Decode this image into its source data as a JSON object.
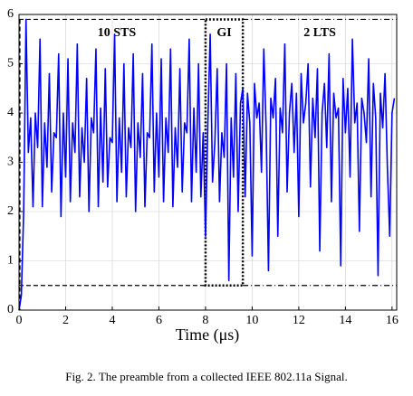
{
  "chart_data": {
    "type": "line",
    "x_label": "Time (μs)",
    "caption": "Fig. 2.  The preamble from a collected IEEE 802.11a Signal.",
    "xlim": [
      0,
      16.2
    ],
    "ylim": [
      0,
      6
    ],
    "xticks": [
      0,
      2,
      4,
      6,
      8,
      10,
      12,
      14,
      16
    ],
    "yticks": [
      0,
      1,
      2,
      3,
      4,
      5,
      6
    ],
    "grid": true,
    "regions": [
      {
        "label": "10 STS",
        "x": [
          0,
          8
        ]
      },
      {
        "label": "GI",
        "x": [
          8,
          9.6
        ]
      },
      {
        "label": "2 LTS",
        "x": [
          9.6,
          16.2
        ]
      }
    ],
    "levels": [
      0.5,
      5.9
    ],
    "x": [
      0,
      0.1,
      0.2,
      0.3,
      0.4,
      0.5,
      0.6,
      0.7,
      0.8,
      0.9,
      1,
      1.1,
      1.2,
      1.3,
      1.4,
      1.5,
      1.6,
      1.7,
      1.8,
      1.9,
      2,
      2.1,
      2.2,
      2.3,
      2.4,
      2.5,
      2.6,
      2.7,
      2.8,
      2.9,
      3,
      3.1,
      3.2,
      3.3,
      3.4,
      3.5,
      3.6,
      3.7,
      3.8,
      3.9,
      4,
      4.1,
      4.2,
      4.3,
      4.4,
      4.5,
      4.6,
      4.7,
      4.8,
      4.9,
      5,
      5.1,
      5.2,
      5.3,
      5.4,
      5.5,
      5.6,
      5.7,
      5.8,
      5.9,
      6,
      6.1,
      6.2,
      6.3,
      6.4,
      6.5,
      6.6,
      6.7,
      6.8,
      6.9,
      7,
      7.1,
      7.2,
      7.3,
      7.4,
      7.5,
      7.6,
      7.7,
      7.8,
      7.9,
      8,
      8.1,
      8.2,
      8.3,
      8.4,
      8.5,
      8.6,
      8.7,
      8.8,
      8.9,
      9,
      9.1,
      9.2,
      9.3,
      9.4,
      9.5,
      9.6,
      9.7,
      9.8,
      9.9,
      10,
      10.1,
      10.2,
      10.3,
      10.4,
      10.5,
      10.6,
      10.7,
      10.8,
      10.9,
      11,
      11.1,
      11.2,
      11.3,
      11.4,
      11.5,
      11.6,
      11.7,
      11.8,
      11.9,
      12,
      12.1,
      12.2,
      12.3,
      12.4,
      12.5,
      12.6,
      12.7,
      12.8,
      12.9,
      13,
      13.1,
      13.2,
      13.3,
      13.4,
      13.5,
      13.6,
      13.7,
      13.8,
      13.9,
      14,
      14.1,
      14.2,
      14.3,
      14.4,
      14.5,
      14.6,
      14.7,
      14.8,
      14.9,
      15,
      15.1,
      15.2,
      15.3,
      15.4,
      15.5,
      15.6,
      15.7,
      15.8,
      15.9,
      16,
      16.1
    ],
    "series": [
      {
        "color": "#0000ff",
        "values": [
          0,
          0.3,
          2.0,
          5.9,
          3.2,
          3.9,
          2.1,
          4.0,
          3.3,
          5.5,
          2.1,
          3.8,
          2.9,
          4.8,
          2.4,
          3.6,
          3.5,
          5.2,
          1.9,
          4.0,
          2.7,
          5.1,
          2.2,
          3.8,
          3.2,
          5.4,
          2.3,
          3.7,
          3.0,
          4.7,
          2.0,
          3.9,
          3.6,
          5.3,
          2.1,
          4.1,
          2.6,
          4.9,
          2.5,
          3.5,
          3.4,
          5.6,
          2.2,
          3.9,
          2.8,
          5.0,
          2.3,
          3.7,
          3.3,
          5.2,
          2.0,
          3.8,
          3.1,
          4.8,
          2.1,
          3.6,
          3.5,
          5.4,
          2.4,
          4.0,
          2.7,
          5.1,
          2.2,
          3.9,
          3.2,
          5.3,
          2.1,
          3.7,
          2.9,
          4.9,
          2.4,
          3.8,
          3.6,
          5.5,
          2.2,
          4.1,
          2.8,
          5.0,
          2.3,
          3.6,
          1.5,
          3.8,
          5.6,
          2.6,
          3.4,
          4.9,
          2.2,
          3.6,
          3.1,
          5.0,
          0.6,
          3.9,
          2.7,
          4.8,
          2.0,
          4.2,
          4.5,
          2.3,
          4.4,
          3.8,
          1.1,
          4.6,
          3.9,
          4.2,
          2.8,
          5.3,
          3.7,
          0.8,
          4.3,
          3.9,
          4.7,
          1.5,
          4.1,
          3.6,
          5.4,
          2.4,
          4.0,
          4.6,
          3.2,
          4.4,
          1.9,
          4.8,
          3.8,
          4.2,
          5.0,
          2.5,
          4.3,
          3.5,
          4.9,
          1.2,
          4.0,
          4.6,
          3.3,
          5.2,
          2.2,
          4.4,
          3.9,
          4.1,
          0.9,
          4.7,
          3.6,
          4.5,
          2.7,
          5.5,
          3.8,
          4.2,
          1.6,
          4.3,
          4.0,
          3.4,
          5.1,
          2.3,
          4.6,
          3.9,
          0.7,
          4.4,
          3.7,
          4.8,
          2.9,
          1.5,
          4.0,
          4.3
        ]
      }
    ]
  }
}
